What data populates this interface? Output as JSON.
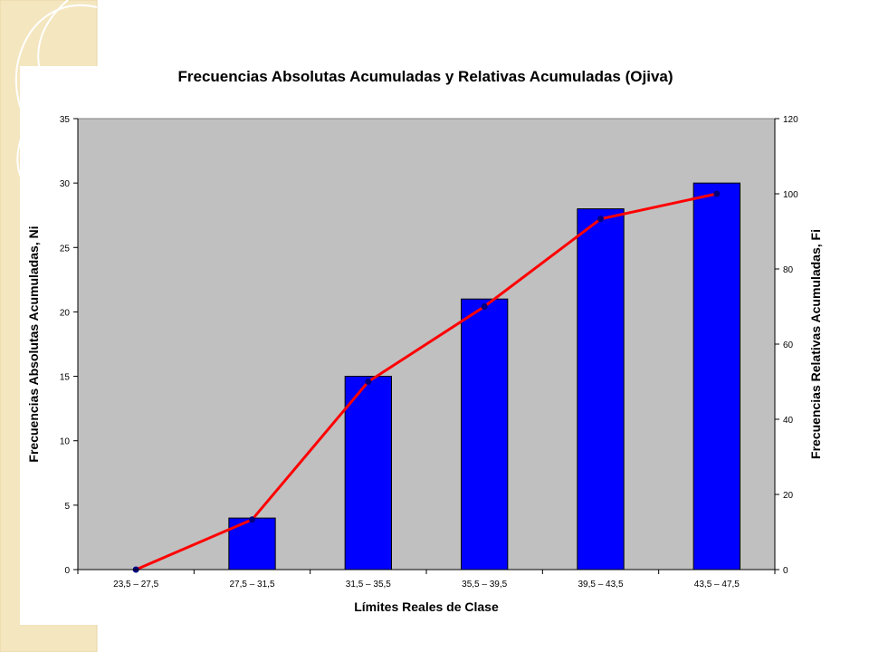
{
  "chart_data": {
    "type": "bar",
    "title": "Frecuencias Absolutas Acumuladas y Relativas Acumuladas (Ojiva)",
    "xlabel": "Límites Reales de Clase",
    "ylabel": "Frecuencias Absolutas Acumuladas, Ni",
    "y2label": "Frecuencias Relativas Acumuladas, Fi",
    "categories": [
      "23,5 – 27,5",
      "27,5 – 31,5",
      "31,5 – 35,5",
      "35,5 – 39,5",
      "39,5 – 43,5",
      "43,5 – 47,5"
    ],
    "series": [
      {
        "type": "bar",
        "axis": "left",
        "values": [
          0,
          4,
          15,
          21,
          28,
          30
        ],
        "color": "#0000ff"
      },
      {
        "type": "line",
        "axis": "right",
        "values": [
          0,
          13.3,
          50,
          70,
          93.3,
          100
        ],
        "color": "#ff0000",
        "marker_color": "#000080"
      }
    ],
    "ylim": [
      0,
      35
    ],
    "y2lim": [
      0,
      120
    ],
    "yticks": [
      "0",
      "5",
      "10",
      "15",
      "20",
      "25",
      "30",
      "35"
    ],
    "y2ticks": [
      "0",
      "20",
      "40",
      "60",
      "80",
      "100",
      "120"
    ],
    "plot_background": "#c0c0c0",
    "grid": false,
    "legend": "none"
  }
}
